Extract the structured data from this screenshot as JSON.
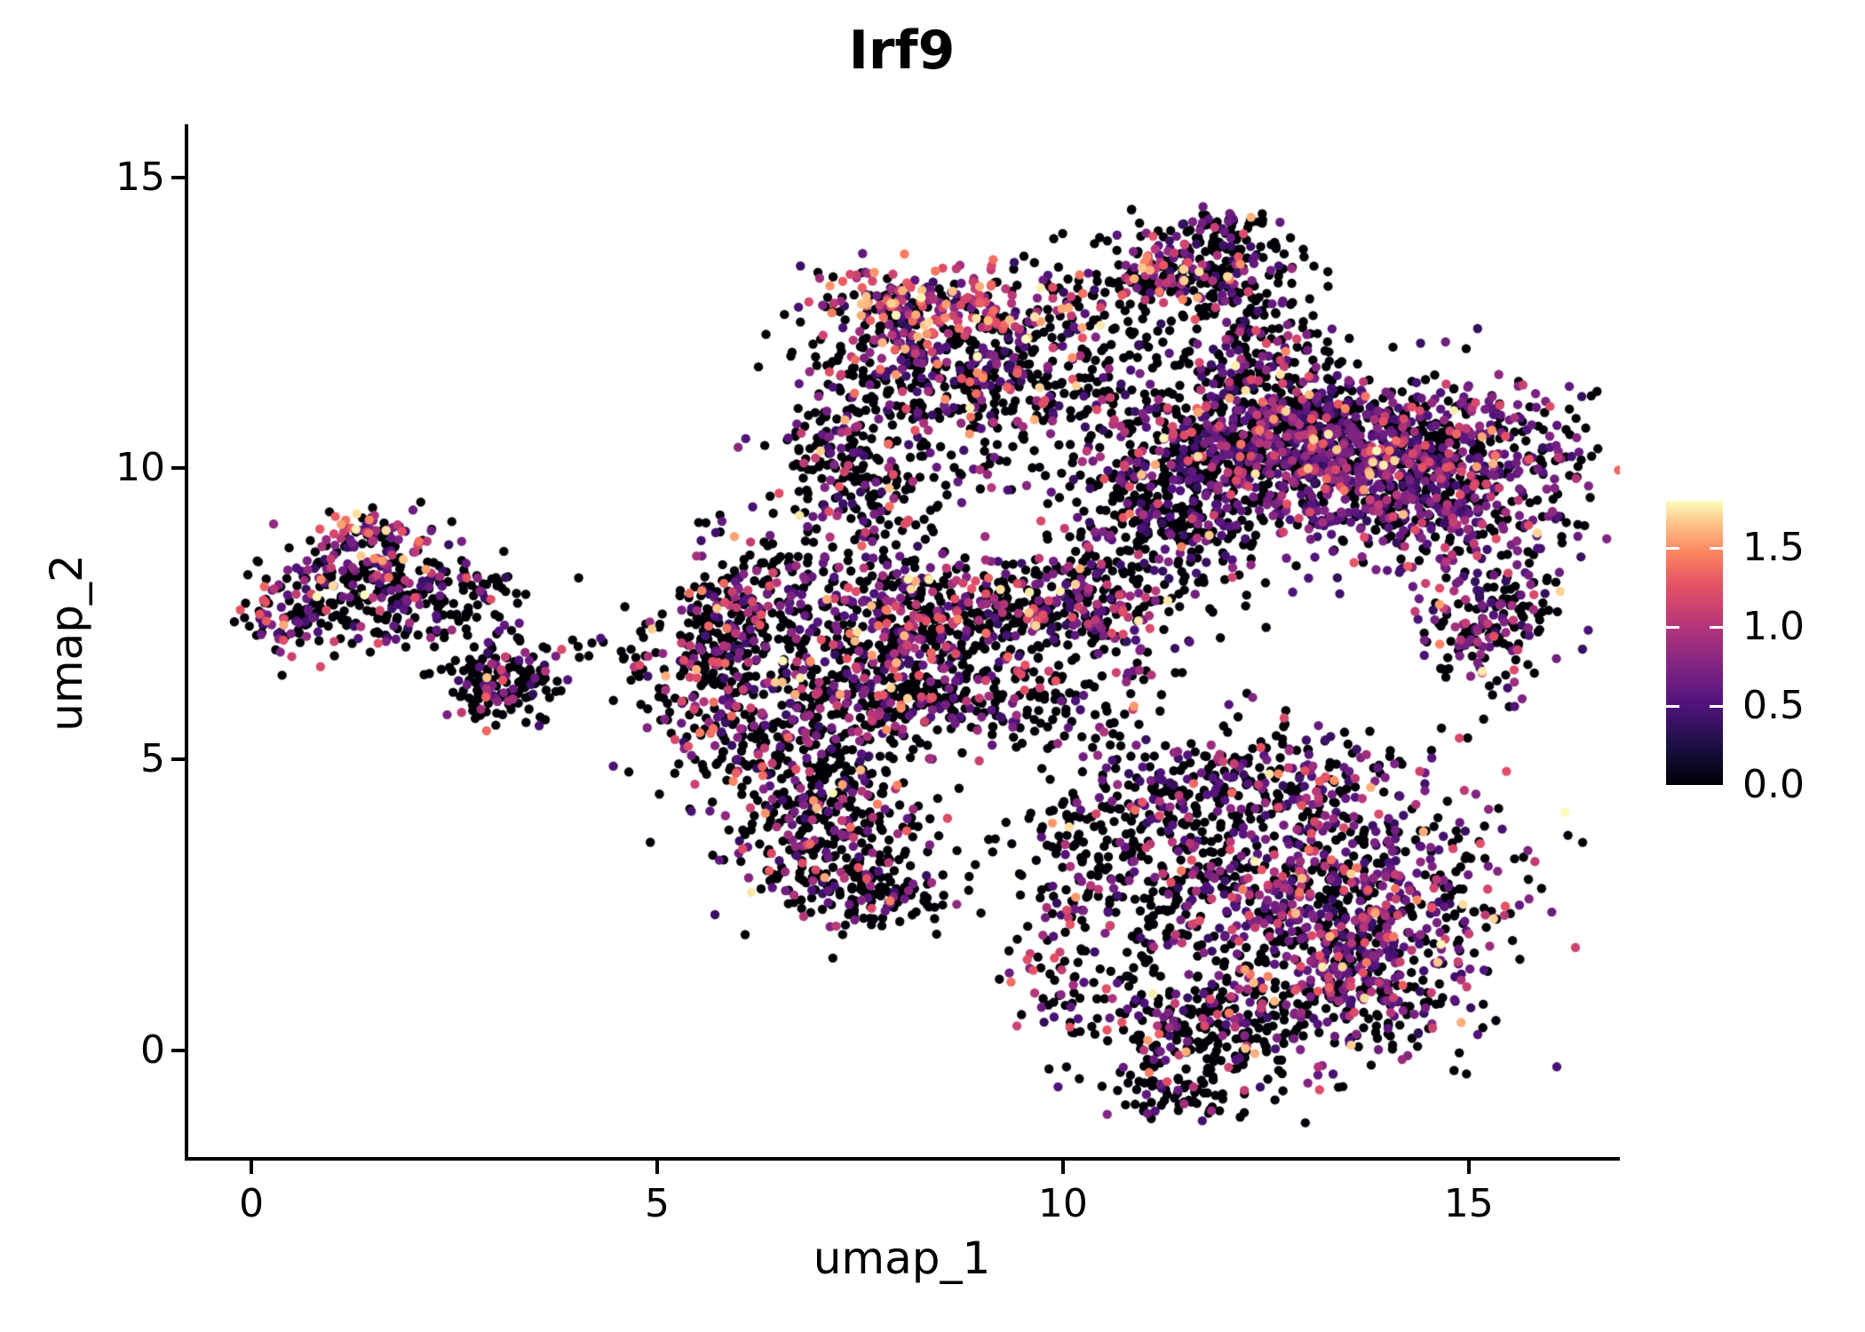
{
  "title": "Irf9",
  "axes": {
    "x": {
      "label": "umap_1",
      "ticks": [
        "0",
        "5",
        "10",
        "15"
      ],
      "tick_values": [
        0,
        5,
        10,
        15
      ],
      "range": [
        -0.79,
        16.82
      ]
    },
    "y": {
      "label": "umap_2",
      "ticks": [
        "0",
        "5",
        "10",
        "15"
      ],
      "tick_values": [
        0,
        5,
        10,
        15
      ],
      "range": [
        -1.86,
        15.88
      ]
    }
  },
  "colorbar": {
    "ticks": [
      "0.0",
      "0.5",
      "1.0",
      "1.5"
    ],
    "tick_values": [
      0.0,
      0.5,
      1.0,
      1.5
    ],
    "dash_values": [
      0.5,
      1.0,
      1.5
    ],
    "range": [
      0,
      1.8
    ]
  },
  "chart_data": {
    "type": "scatter",
    "title": "Irf9",
    "xlabel": "umap_1",
    "ylabel": "umap_2",
    "xlim": [
      -0.79,
      16.82
    ],
    "ylim": [
      -1.86,
      15.88
    ],
    "legend_position": "right",
    "grid": false,
    "point_radius_px": 5.2,
    "seed": 1337,
    "color_scale": {
      "name": "magma",
      "domain": [
        0,
        1.8
      ],
      "stops": [
        [
          0.0,
          0,
          0,
          4
        ],
        [
          0.14,
          28,
          16,
          68
        ],
        [
          0.28,
          79,
          18,
          123
        ],
        [
          0.42,
          129,
          37,
          129
        ],
        [
          0.56,
          181,
          54,
          122
        ],
        [
          0.7,
          229,
          80,
          100
        ],
        [
          0.82,
          251,
          135,
          97
        ],
        [
          0.92,
          254,
          194,
          135
        ],
        [
          1.0,
          252,
          253,
          191
        ]
      ]
    },
    "value_bins": {
      "zero": [
        0.0,
        0.02
      ],
      "low": [
        0.35,
        0.78
      ],
      "mid": [
        0.8,
        1.28
      ],
      "high": [
        1.3,
        1.8
      ]
    },
    "clusters": [
      {
        "name": "left-main",
        "n": 200,
        "cx": 1.35,
        "cy": 7.95,
        "sx": 0.55,
        "sy": 0.5,
        "p": [
          0.62,
          0.22,
          0.12,
          0.04
        ]
      },
      {
        "name": "left-top-hot",
        "n": 70,
        "cx": 1.55,
        "cy": 8.85,
        "sx": 0.38,
        "sy": 0.22,
        "p": [
          0.25,
          0.25,
          0.35,
          0.15
        ]
      },
      {
        "name": "left-tip",
        "n": 80,
        "cx": 0.5,
        "cy": 7.35,
        "sx": 0.3,
        "sy": 0.3,
        "p": [
          0.5,
          0.25,
          0.2,
          0.05
        ]
      },
      {
        "name": "left-arm",
        "n": 110,
        "cx": 2.4,
        "cy": 7.75,
        "sx": 0.5,
        "sy": 0.35,
        "p": [
          0.68,
          0.2,
          0.1,
          0.02
        ]
      },
      {
        "name": "left-lower",
        "n": 160,
        "cx": 3.05,
        "cy": 6.3,
        "sx": 0.38,
        "sy": 0.38,
        "p": [
          0.72,
          0.15,
          0.11,
          0.02
        ]
      },
      {
        "name": "left-trail",
        "n": 14,
        "cx": 4.1,
        "cy": 6.95,
        "sx": 0.45,
        "sy": 0.12,
        "p": [
          0.85,
          0.1,
          0.05,
          0.0
        ]
      },
      {
        "name": "cl-core",
        "n": 420,
        "cx": 6.7,
        "cy": 5.4,
        "sx": 0.85,
        "sy": 1.0,
        "p": [
          0.62,
          0.2,
          0.14,
          0.04
        ]
      },
      {
        "name": "cl-upper",
        "n": 320,
        "cx": 7.9,
        "cy": 6.6,
        "sx": 0.75,
        "sy": 0.75,
        "p": [
          0.6,
          0.22,
          0.14,
          0.04
        ]
      },
      {
        "name": "cl-lower",
        "n": 240,
        "cx": 7.2,
        "cy": 3.6,
        "sx": 0.65,
        "sy": 0.6,
        "p": [
          0.68,
          0.17,
          0.12,
          0.03
        ]
      },
      {
        "name": "cl-left",
        "n": 150,
        "cx": 5.8,
        "cy": 6.9,
        "sx": 0.4,
        "sy": 0.65,
        "p": [
          0.55,
          0.25,
          0.16,
          0.04
        ]
      },
      {
        "name": "cl-bottom-tail",
        "n": 90,
        "cx": 7.7,
        "cy": 2.7,
        "sx": 0.45,
        "sy": 0.3,
        "p": [
          0.75,
          0.15,
          0.08,
          0.02
        ]
      },
      {
        "name": "cl-top-arm",
        "n": 110,
        "cx": 6.3,
        "cy": 7.9,
        "sx": 0.45,
        "sy": 0.5,
        "p": [
          0.55,
          0.25,
          0.15,
          0.05
        ]
      },
      {
        "name": "cl-left-edge",
        "n": 60,
        "cx": 5.6,
        "cy": 7.2,
        "sx": 0.25,
        "sy": 0.9,
        "p": [
          0.6,
          0.2,
          0.15,
          0.05
        ]
      },
      {
        "name": "cl-gap-tip",
        "n": 30,
        "cx": 4.9,
        "cy": 6.6,
        "sx": 0.35,
        "sy": 0.45,
        "p": [
          0.7,
          0.2,
          0.1,
          0.0
        ]
      },
      {
        "name": "top-mid-core",
        "n": 380,
        "cx": 8.5,
        "cy": 11.8,
        "sx": 0.8,
        "sy": 0.55,
        "p": [
          0.6,
          0.22,
          0.13,
          0.05
        ]
      },
      {
        "name": "top-mid-hot-band",
        "n": 200,
        "cx": 8.3,
        "cy": 12.85,
        "sx": 0.75,
        "sy": 0.3,
        "p": [
          0.3,
          0.2,
          0.33,
          0.17
        ]
      },
      {
        "name": "top-mid-lowleft",
        "n": 130,
        "cx": 7.3,
        "cy": 10.3,
        "sx": 0.5,
        "sy": 0.55,
        "p": [
          0.7,
          0.15,
          0.11,
          0.04
        ]
      },
      {
        "name": "top-mid-right",
        "n": 90,
        "cx": 9.5,
        "cy": 11.2,
        "sx": 0.5,
        "sy": 0.6,
        "p": [
          0.65,
          0.2,
          0.11,
          0.04
        ]
      },
      {
        "name": "bridge-bc",
        "n": 120,
        "cx": 7.5,
        "cy": 9.3,
        "sx": 0.55,
        "sy": 0.6,
        "p": [
          0.7,
          0.18,
          0.09,
          0.03
        ]
      },
      {
        "name": "topright-core",
        "n": 240,
        "cx": 11.8,
        "cy": 13.3,
        "sx": 0.6,
        "sy": 0.45,
        "p": [
          0.78,
          0.13,
          0.07,
          0.02
        ]
      },
      {
        "name": "topright-hot",
        "n": 70,
        "cx": 11.1,
        "cy": 13.35,
        "sx": 0.3,
        "sy": 0.25,
        "p": [
          0.3,
          0.2,
          0.38,
          0.12
        ]
      },
      {
        "name": "topright-tip",
        "n": 45,
        "cx": 12.0,
        "cy": 14.15,
        "sx": 0.35,
        "sy": 0.15,
        "p": [
          0.7,
          0.2,
          0.08,
          0.02
        ]
      },
      {
        "name": "bridge-cd",
        "n": 90,
        "cx": 10.2,
        "cy": 12.6,
        "sx": 0.5,
        "sy": 0.55,
        "p": [
          0.55,
          0.2,
          0.17,
          0.08
        ]
      },
      {
        "name": "right-core",
        "n": 480,
        "cx": 12.3,
        "cy": 10.4,
        "sx": 0.85,
        "sy": 0.65,
        "p": [
          0.55,
          0.3,
          0.12,
          0.03
        ]
      },
      {
        "name": "right-dense",
        "n": 850,
        "cx": 14.3,
        "cy": 9.8,
        "sx": 1.0,
        "sy": 0.75,
        "p": [
          0.4,
          0.44,
          0.13,
          0.03
        ]
      },
      {
        "name": "right-top-band",
        "n": 430,
        "cx": 13.3,
        "cy": 10.6,
        "sx": 1.3,
        "sy": 0.5,
        "p": [
          0.5,
          0.35,
          0.12,
          0.03
        ]
      },
      {
        "name": "right-left-lobe",
        "n": 260,
        "cx": 11.3,
        "cy": 9.2,
        "sx": 0.6,
        "sy": 0.5,
        "p": [
          0.68,
          0.22,
          0.08,
          0.02
        ]
      },
      {
        "name": "right-hang-lobe",
        "n": 200,
        "cx": 15.2,
        "cy": 7.4,
        "sx": 0.45,
        "sy": 0.65,
        "p": [
          0.45,
          0.33,
          0.17,
          0.05
        ]
      },
      {
        "name": "bridge-de",
        "n": 130,
        "cx": 12.4,
        "cy": 11.9,
        "sx": 0.45,
        "sy": 0.45,
        "p": [
          0.6,
          0.3,
          0.08,
          0.02
        ]
      },
      {
        "name": "mid-band-left",
        "n": 280,
        "cx": 8.7,
        "cy": 7.5,
        "sx": 0.85,
        "sy": 0.55,
        "p": [
          0.6,
          0.22,
          0.14,
          0.04
        ]
      },
      {
        "name": "mid-band-right",
        "n": 260,
        "cx": 10.3,
        "cy": 7.7,
        "sx": 0.75,
        "sy": 0.5,
        "p": [
          0.62,
          0.24,
          0.11,
          0.03
        ]
      },
      {
        "name": "mid-band-low",
        "n": 180,
        "cx": 9.3,
        "cy": 6.1,
        "sx": 1.0,
        "sy": 0.55,
        "p": [
          0.72,
          0.16,
          0.1,
          0.02
        ]
      },
      {
        "name": "mid-sparse",
        "n": 40,
        "cx": 9.0,
        "cy": 9.9,
        "sx": 0.7,
        "sy": 0.5,
        "p": [
          0.65,
          0.2,
          0.1,
          0.05
        ]
      },
      {
        "name": "gap-filler",
        "n": 50,
        "cx": 10.8,
        "cy": 11.4,
        "sx": 0.5,
        "sy": 0.5,
        "p": [
          0.7,
          0.2,
          0.08,
          0.02
        ]
      },
      {
        "name": "bot-left-sparse",
        "n": 300,
        "cx": 10.9,
        "cy": 3.3,
        "sx": 0.75,
        "sy": 0.95,
        "p": [
          0.78,
          0.13,
          0.07,
          0.02
        ]
      },
      {
        "name": "bot-dense",
        "n": 780,
        "cx": 13.4,
        "cy": 2.6,
        "sx": 1.05,
        "sy": 0.95,
        "p": [
          0.45,
          0.35,
          0.16,
          0.04
        ]
      },
      {
        "name": "bot-top-edge",
        "n": 260,
        "cx": 12.3,
        "cy": 4.6,
        "sx": 0.95,
        "sy": 0.45,
        "p": [
          0.55,
          0.3,
          0.12,
          0.03
        ]
      },
      {
        "name": "bot-lower-lobe",
        "n": 300,
        "cx": 11.8,
        "cy": 0.4,
        "sx": 0.85,
        "sy": 0.55,
        "p": [
          0.72,
          0.18,
          0.08,
          0.02
        ]
      },
      {
        "name": "bot-lower-right",
        "n": 180,
        "cx": 13.7,
        "cy": 1.0,
        "sx": 0.55,
        "sy": 0.5,
        "p": [
          0.5,
          0.32,
          0.14,
          0.04
        ]
      },
      {
        "name": "bot-tip",
        "n": 50,
        "cx": 11.4,
        "cy": -0.75,
        "sx": 0.35,
        "sy": 0.2,
        "p": [
          0.8,
          0.15,
          0.05,
          0.0
        ]
      },
      {
        "name": "bot-left-arc",
        "n": 60,
        "cx": 9.9,
        "cy": 1.6,
        "sx": 0.3,
        "sy": 0.8,
        "p": [
          0.55,
          0.2,
          0.17,
          0.08
        ]
      }
    ]
  }
}
